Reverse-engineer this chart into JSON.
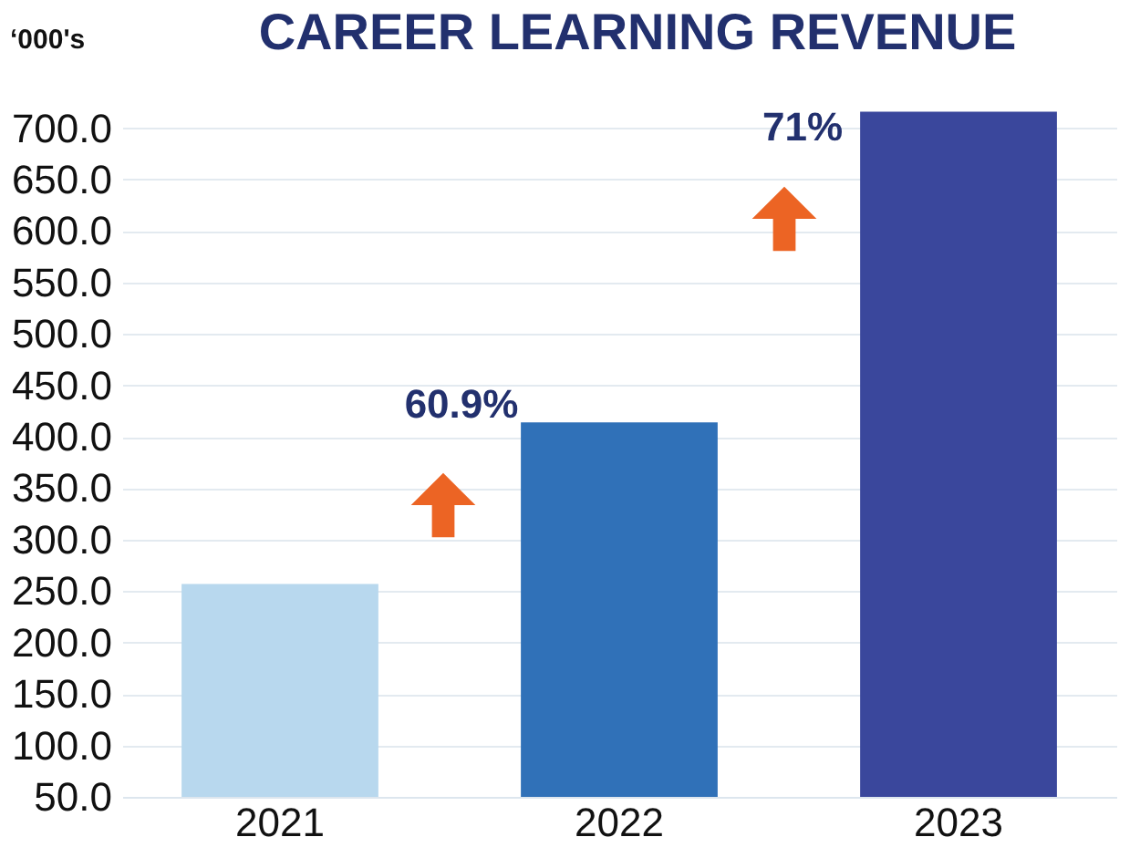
{
  "chart_data": {
    "type": "bar",
    "title": "CAREER LEARNING REVENUE",
    "ylabel": "‘000's",
    "categories": [
      "2021",
      "2022",
      "2023"
    ],
    "values": [
      257,
      414,
      716
    ],
    "colors": [
      "#b8d8ee",
      "#3071b8",
      "#3a479c"
    ],
    "ylim": [
      50,
      720
    ],
    "yticks": [
      {
        "value": 50,
        "label": "50.0"
      },
      {
        "value": 100,
        "label": "100.0"
      },
      {
        "value": 150,
        "label": "150.0"
      },
      {
        "value": 200,
        "label": "200.0"
      },
      {
        "value": 250,
        "label": "250.0"
      },
      {
        "value": 300,
        "label": "300.0"
      },
      {
        "value": 350,
        "label": "350.0"
      },
      {
        "value": 400,
        "label": "400.0"
      },
      {
        "value": 450,
        "label": "450.0"
      },
      {
        "value": 500,
        "label": "500.0"
      },
      {
        "value": 550,
        "label": "550.0"
      },
      {
        "value": 600,
        "label": "600.0"
      },
      {
        "value": 650,
        "label": "650.0"
      },
      {
        "value": 700,
        "label": "700.0"
      }
    ],
    "grid": "y",
    "annotations": [
      "60.9%",
      "71%"
    ]
  }
}
